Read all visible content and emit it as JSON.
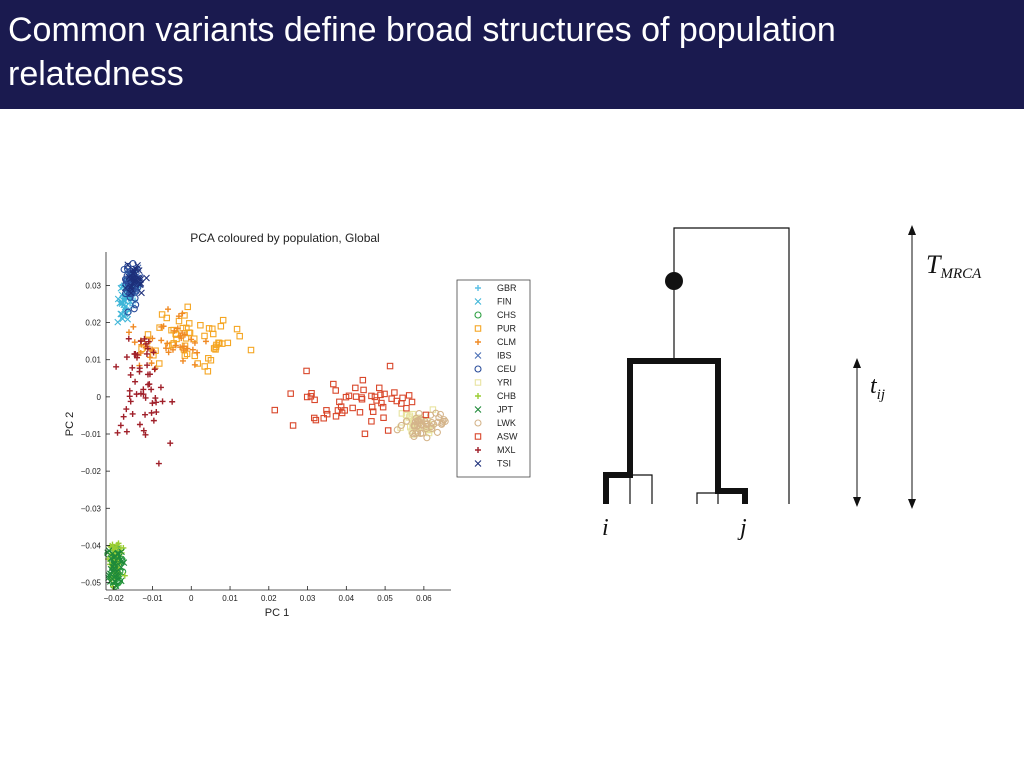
{
  "slide": {
    "title": "Common variants define broad structures of population relatedness",
    "colors": {
      "title_bar": "#1a1a4f",
      "title_text": "#ffffff"
    }
  },
  "chart_data": {
    "type": "scatter",
    "title": "PCA coloured by population, Global",
    "xlabel": "PC 1",
    "ylabel": "PC 2",
    "xlim": [
      -0.022,
      0.067
    ],
    "ylim": [
      -0.052,
      0.039
    ],
    "xticks": [
      -0.02,
      -0.01,
      0,
      0.01,
      0.02,
      0.03,
      0.04,
      0.05,
      0.06
    ],
    "xtick_labels": [
      "−0.02",
      "−0.01",
      "0",
      "0.01",
      "0.02",
      "0.03",
      "0.04",
      "0.05",
      "0.06"
    ],
    "yticks": [
      -0.05,
      -0.04,
      -0.03,
      -0.02,
      -0.01,
      0,
      0.01,
      0.02,
      0.03
    ],
    "ytick_labels": [
      "−0.05",
      "−0.04",
      "−0.03",
      "−0.02",
      "−0.01",
      "0",
      "0.01",
      "0.02",
      "0.03"
    ],
    "grid": false,
    "legend_position": "right",
    "series": [
      {
        "name": "GBR",
        "marker": "plus",
        "color": "#5bc0e6",
        "cx": -0.0155,
        "cy": 0.029,
        "sx": 0.0012,
        "sy": 0.0025,
        "n": 40
      },
      {
        "name": "FIN",
        "marker": "x",
        "color": "#3fb6d8",
        "cx": -0.0175,
        "cy": 0.026,
        "sx": 0.001,
        "sy": 0.003,
        "n": 35
      },
      {
        "name": "CHS",
        "marker": "circle",
        "color": "#2ea043",
        "cx": -0.0195,
        "cy": -0.0455,
        "sx": 0.001,
        "sy": 0.003,
        "n": 40
      },
      {
        "name": "PUR",
        "marker": "square",
        "color": "#f5a623",
        "cx": 0.0,
        "cy": 0.015,
        "sx": 0.0055,
        "sy": 0.0035,
        "n": 55
      },
      {
        "name": "CLM",
        "marker": "plus",
        "color": "#f08a24",
        "cx": -0.006,
        "cy": 0.014,
        "sx": 0.0045,
        "sy": 0.0045,
        "n": 45
      },
      {
        "name": "IBS",
        "marker": "x",
        "color": "#4a6fb5",
        "cx": -0.015,
        "cy": 0.031,
        "sx": 0.001,
        "sy": 0.0018,
        "n": 25
      },
      {
        "name": "CEU",
        "marker": "circle",
        "color": "#2a4c9a",
        "cx": -0.0155,
        "cy": 0.03,
        "sx": 0.001,
        "sy": 0.003,
        "n": 40
      },
      {
        "name": "YRI",
        "marker": "square",
        "color": "#e8e3a0",
        "cx": 0.058,
        "cy": -0.007,
        "sx": 0.0025,
        "sy": 0.0014,
        "n": 35
      },
      {
        "name": "CHB",
        "marker": "plus",
        "color": "#9acd32",
        "cx": -0.0195,
        "cy": -0.045,
        "sx": 0.0012,
        "sy": 0.003,
        "n": 40
      },
      {
        "name": "JPT",
        "marker": "x",
        "color": "#1f8a3a",
        "cx": -0.0198,
        "cy": -0.046,
        "sx": 0.001,
        "sy": 0.0028,
        "n": 40
      },
      {
        "name": "LWK",
        "marker": "circle",
        "color": "#d4b48a",
        "cx": 0.06,
        "cy": -0.0075,
        "sx": 0.003,
        "sy": 0.0016,
        "n": 45
      },
      {
        "name": "ASW",
        "marker": "square",
        "color": "#d9472b",
        "cx": 0.043,
        "cy": -0.002,
        "sx": 0.009,
        "sy": 0.004,
        "n": 55
      },
      {
        "name": "MXL",
        "marker": "plus",
        "color": "#a0202a",
        "cx": -0.0125,
        "cy": 0.002,
        "sx": 0.0035,
        "sy": 0.008,
        "n": 55
      },
      {
        "name": "TSI",
        "marker": "x",
        "color": "#1d2f7a",
        "cx": -0.0145,
        "cy": 0.032,
        "sx": 0.0012,
        "sy": 0.002,
        "n": 30
      }
    ]
  },
  "tree": {
    "leaf_i": "i",
    "leaf_j": "j",
    "t_ij": "t",
    "t_ij_sub": "ij",
    "t_mrca": "T",
    "t_mrca_sub": "MRCA"
  }
}
